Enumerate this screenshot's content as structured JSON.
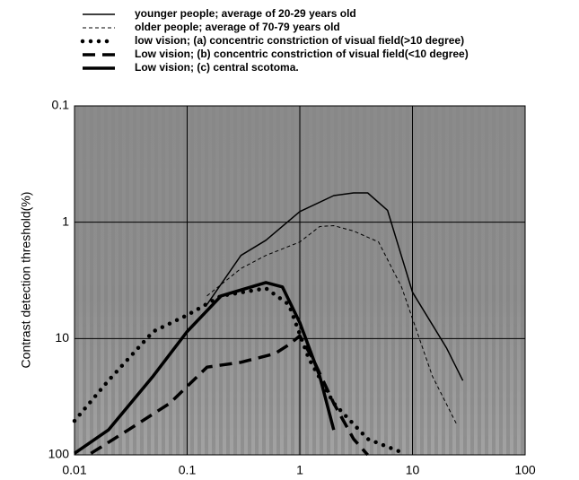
{
  "chart_data": {
    "type": "line",
    "y_label": "Contrast detection threshold(%)",
    "xlog": true,
    "ylog": true,
    "y_inverted": true,
    "grid": true,
    "xlim": [
      0.01,
      100
    ],
    "xticks": [
      0.01,
      0.1,
      1,
      10,
      100
    ],
    "ylim": [
      0.1,
      100
    ],
    "yticks": [
      0.1,
      1,
      10,
      100
    ],
    "series": [
      {
        "name": "younger people; average of 20-29 years old",
        "color": "#000000",
        "style": "solid",
        "width": 1.5,
        "x": [
          0.15,
          0.3,
          0.5,
          1,
          2,
          3,
          4,
          6,
          10,
          20,
          28
        ],
        "values": [
          5.1,
          1.93,
          1.43,
          0.81,
          0.59,
          0.56,
          0.56,
          0.79,
          4,
          12,
          23
        ]
      },
      {
        "name": "older people; average of 70-79 years old",
        "color": "#000000",
        "style": "dashed",
        "width": 1,
        "x": [
          0.15,
          0.3,
          0.5,
          1,
          1.5,
          2,
          3,
          5,
          8,
          15,
          25
        ],
        "values": [
          4.3,
          2.5,
          1.93,
          1.48,
          1.09,
          1.07,
          1.19,
          1.48,
          3.6,
          21,
          56
        ]
      },
      {
        "name": "low vision;  (a) concentric constriction of visual field(>10 degree)",
        "color": "#000000",
        "style": "dotted",
        "width": 4.5,
        "x": [
          0.01,
          0.02,
          0.05,
          0.1,
          0.2,
          0.5,
          0.8,
          1.2,
          2,
          4,
          8
        ],
        "values": [
          51,
          23,
          8.7,
          6.3,
          4.3,
          3.7,
          5.1,
          14.8,
          36,
          73,
          95
        ]
      },
      {
        "name": "Low vision; (b) concentric constriction of visual field(<10 degree)",
        "color": "#000000",
        "style": "bigdash",
        "width": 3.5,
        "x": [
          0.014,
          0.03,
          0.07,
          0.15,
          0.3,
          0.6,
          0.8,
          1,
          1.3,
          2,
          3,
          4
        ],
        "values": [
          97,
          61,
          36,
          17.6,
          16,
          13.5,
          11.3,
          9.5,
          14.8,
          36,
          73,
          100
        ]
      },
      {
        "name": "Low vision; (c) central scotoma.",
        "color": "#000000",
        "style": "solid",
        "width": 3.5,
        "x": [
          0.01,
          0.02,
          0.05,
          0.1,
          0.2,
          0.5,
          0.7,
          1,
          1.5,
          2
        ],
        "values": [
          97,
          61,
          21,
          8.7,
          4.3,
          3.3,
          3.6,
          7.3,
          21,
          61
        ]
      }
    ]
  }
}
